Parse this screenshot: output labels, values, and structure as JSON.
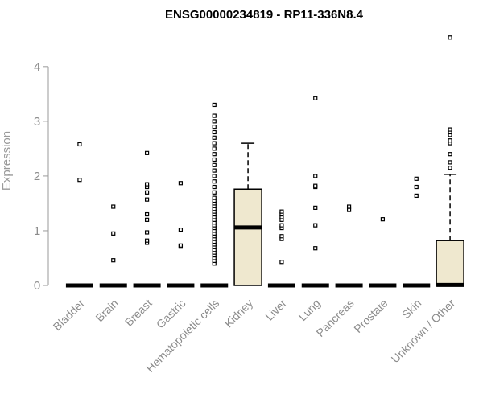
{
  "chart_data": {
    "type": "box",
    "title": "ENSG00000234819 - RP11-336N8.4",
    "ylabel": "Expression",
    "xlabel": "",
    "ylim": [
      0,
      4.6
    ],
    "yticks": [
      0,
      1,
      2,
      3,
      4
    ],
    "ytick_labels": [
      "0",
      "1",
      "2",
      "3",
      "4"
    ],
    "box_fill": "#efe8cf",
    "box_stroke": "#000000",
    "groups": [
      {
        "name": "Bladder",
        "q1": 0,
        "median": 0,
        "q3": 0,
        "whisker_low": 0,
        "whisker_high": 0,
        "outliers": [
          1.93,
          2.58
        ]
      },
      {
        "name": "Brain",
        "q1": 0,
        "median": 0,
        "q3": 0,
        "whisker_low": 0,
        "whisker_high": 0,
        "outliers": [
          0.46,
          0.95,
          1.44
        ]
      },
      {
        "name": "Breast",
        "q1": 0,
        "median": 0,
        "q3": 0,
        "whisker_low": 0,
        "whisker_high": 0,
        "outliers": [
          0.78,
          0.82,
          0.97,
          1.2,
          1.3,
          1.57,
          1.7,
          1.8,
          1.85,
          2.42
        ]
      },
      {
        "name": "Gastric",
        "q1": 0,
        "median": 0,
        "q3": 0,
        "whisker_low": 0,
        "whisker_high": 0,
        "outliers": [
          0.71,
          0.73,
          1.02,
          1.87
        ]
      },
      {
        "name": "Hematopoietic cells",
        "q1": 0,
        "median": 0,
        "q3": 0,
        "whisker_low": 0,
        "whisker_high": 0,
        "outliers": [
          0.4,
          0.45,
          0.5,
          0.55,
          0.6,
          0.65,
          0.7,
          0.75,
          0.8,
          0.85,
          0.9,
          0.95,
          1.0,
          1.05,
          1.1,
          1.15,
          1.2,
          1.25,
          1.3,
          1.35,
          1.4,
          1.45,
          1.5,
          1.55,
          1.6,
          1.7,
          1.8,
          1.9,
          2.0,
          2.1,
          2.2,
          2.3,
          2.4,
          2.5,
          2.6,
          2.7,
          2.8,
          2.9,
          3.0,
          3.1,
          3.3
        ]
      },
      {
        "name": "Kidney",
        "q1": 0,
        "median": 1.06,
        "q3": 1.76,
        "whisker_low": 0,
        "whisker_high": 2.6,
        "outliers": []
      },
      {
        "name": "Liver",
        "q1": 0,
        "median": 0,
        "q3": 0,
        "whisker_low": 0,
        "whisker_high": 0,
        "outliers": [
          0.43,
          0.85,
          0.9,
          1.05,
          1.1,
          1.2,
          1.25,
          1.3,
          1.35
        ]
      },
      {
        "name": "Lung",
        "q1": 0,
        "median": 0,
        "q3": 0,
        "whisker_low": 0,
        "whisker_high": 0,
        "outliers": [
          0.68,
          1.1,
          1.42,
          1.8,
          1.82,
          2.0,
          3.42
        ]
      },
      {
        "name": "Pancreas",
        "q1": 0,
        "median": 0,
        "q3": 0,
        "whisker_low": 0,
        "whisker_high": 0,
        "outliers": [
          1.38,
          1.44
        ]
      },
      {
        "name": "Prostate",
        "q1": 0,
        "median": 0,
        "q3": 0,
        "whisker_low": 0,
        "whisker_high": 0,
        "outliers": [
          1.21
        ]
      },
      {
        "name": "Skin",
        "q1": 0,
        "median": 0,
        "q3": 0,
        "whisker_low": 0,
        "whisker_high": 0,
        "outliers": [
          1.64,
          1.8,
          1.95
        ]
      },
      {
        "name": "Unknown / Other",
        "q1": 0,
        "median": 0.01,
        "q3": 0.82,
        "whisker_low": 0,
        "whisker_high": 2.03,
        "outliers": [
          2.15,
          2.25,
          2.4,
          2.6,
          2.65,
          2.75,
          2.8,
          2.85,
          4.53
        ]
      }
    ]
  }
}
